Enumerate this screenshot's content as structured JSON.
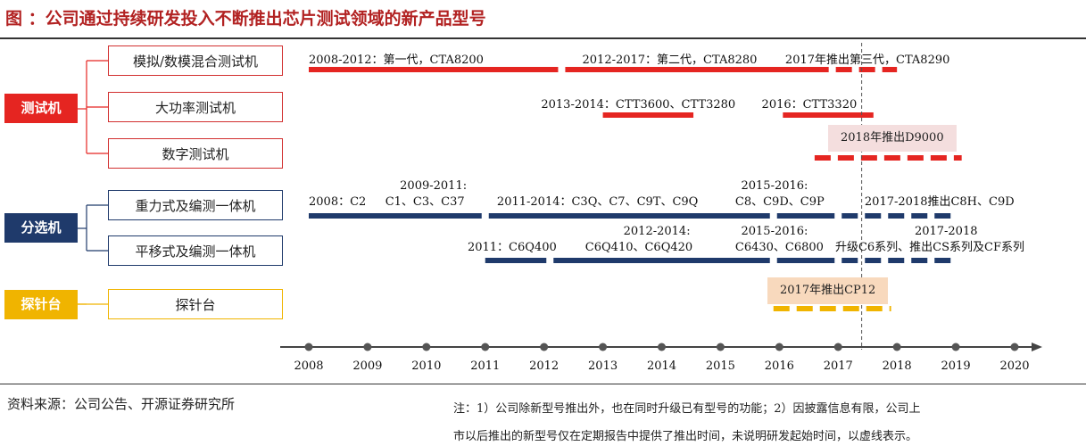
{
  "title": "图  ：公司通过持续研发投入不断推出芯片测试领域的新产品型号",
  "categories": [
    {
      "label": "测试机",
      "color": "#e52521"
    },
    {
      "label": "分选机",
      "color": "#1f3a6b"
    },
    {
      "label": "探针台",
      "color": "#f0b400"
    }
  ],
  "products": [
    {
      "label": "模拟/数模混合测试机"
    },
    {
      "label": "大功率测试机"
    },
    {
      "label": "数字测试机"
    },
    {
      "label": "重力式及编测一体机"
    },
    {
      "label": "平移式及编测一体机"
    },
    {
      "label": "探针台"
    }
  ],
  "chart_data": {
    "type": "timeline",
    "x_axis_ticks": [
      "2008",
      "2009",
      "2010",
      "2011",
      "2012",
      "2013",
      "2014",
      "2015",
      "2016",
      "2017",
      "2018",
      "2019",
      "2020"
    ],
    "x_range": [
      2008,
      2020
    ],
    "reference_line": {
      "year": 2017.4,
      "style": "dashed"
    },
    "rows": [
      {
        "product": "模拟/数模混合测试机",
        "color": "#e52521",
        "bars": [
          {
            "start": 2008,
            "end": 2012.3,
            "style": "solid"
          },
          {
            "start": 2012.3,
            "end": 2016.9,
            "style": "solid"
          },
          {
            "start": 2016.9,
            "end": 2018,
            "style": "dashed"
          }
        ],
        "labels": [
          {
            "text": "2008-2012：第一代，CTA8200",
            "x": 2008
          },
          {
            "text": "2012-2017：第二代，CTA8280",
            "x": 2012.65
          },
          {
            "text": "2017年推出第三代，CTA8290",
            "x": 2016.1
          }
        ]
      },
      {
        "product": "大功率测试机",
        "color": "#e52521",
        "bars": [
          {
            "start": 2013,
            "end": 2014.6,
            "style": "solid"
          },
          {
            "start": 2016,
            "end": 2017.6,
            "style": "solid"
          }
        ],
        "labels": [
          {
            "text": "2013-2014：CTT3600、CTT3280",
            "x": 2011.95
          },
          {
            "text": "2016：CTT3320",
            "x": 2015.7
          }
        ]
      },
      {
        "product": "数字测试机",
        "color": "#e52521",
        "bars": [
          {
            "start": 2016.6,
            "end": 2019.1,
            "style": "dashed"
          }
        ],
        "labels": [],
        "note": "2018年推出D9000"
      },
      {
        "product": "重力式及编测一体机",
        "color": "#1f3a6b",
        "bars": [
          {
            "start": 2008,
            "end": 2011,
            "style": "solid"
          },
          {
            "start": 2011,
            "end": 2015.9,
            "style": "solid"
          },
          {
            "start": 2015.9,
            "end": 2017,
            "style": "solid"
          },
          {
            "start": 2017,
            "end": 2019,
            "style": "dashed"
          }
        ],
        "labels": [
          {
            "text": "2008：C2",
            "x": 2008
          },
          {
            "text": "2009-2011:",
            "x": 2009.55,
            "dy": -18
          },
          {
            "text": "C1、C3、C37",
            "x": 2009.3
          },
          {
            "text": "2011-2014：C3Q、C7、C9T、C9Q",
            "x": 2011.2
          },
          {
            "text": "2015-2016:",
            "x": 2015.35,
            "dy": -18
          },
          {
            "text": "C8、C9D、C9P",
            "x": 2015.25
          },
          {
            "text": "2017-2018推出C8H、C9D",
            "x": 2017.45
          }
        ]
      },
      {
        "product": "平移式及编测一体机",
        "color": "#1f3a6b",
        "bars": [
          {
            "start": 2011,
            "end": 2012.1,
            "style": "solid"
          },
          {
            "start": 2012.1,
            "end": 2015.9,
            "style": "solid"
          },
          {
            "start": 2015.9,
            "end": 2017,
            "style": "solid"
          },
          {
            "start": 2017,
            "end": 2019,
            "style": "dashed"
          }
        ],
        "labels": [
          {
            "text": "2011：C6Q400",
            "x": 2010.7
          },
          {
            "text": "2012-2014:",
            "x": 2013.35,
            "dy": -18
          },
          {
            "text": "C6Q410、C6Q420",
            "x": 2012.7
          },
          {
            "text": "2015-2016:",
            "x": 2015.35,
            "dy": -18
          },
          {
            "text": "C6430、C6800",
            "x": 2015.25
          },
          {
            "text": "2017-2018",
            "x": 2018.3,
            "dy": -18
          },
          {
            "text": "升级C6系列、推出CS系列及CF系列",
            "x": 2016.95
          }
        ]
      },
      {
        "product": "探针台",
        "color": "#f0b400",
        "bars": [
          {
            "start": 2015.9,
            "end": 2017.9,
            "style": "dashed"
          }
        ],
        "labels": [],
        "note": "2017年推出CP12"
      }
    ]
  },
  "source": "资料来源：公司公告、开源证券研究所",
  "note_lines": [
    "注：1）公司除新型号推出外，也在同时升级已有型号的功能；2）因披露信息有限，公司上",
    "市以后推出的新型号仅在定期报告中提供了推出时间，未说明研发起始时间，以虚线表示。"
  ]
}
